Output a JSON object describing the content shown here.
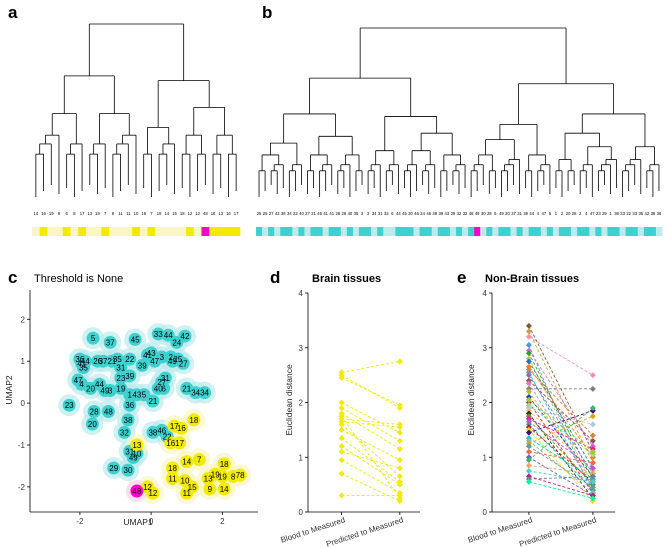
{
  "panels": {
    "a": {
      "label": "a"
    },
    "b": {
      "label": "b"
    },
    "c": {
      "label": "c",
      "title": "Threshold is None"
    },
    "d": {
      "label": "d",
      "title": "Brain tissues"
    },
    "e": {
      "label": "e",
      "title": "Non-Brain tissues"
    }
  },
  "colors": {
    "yellow": "#f2ea00",
    "light_yellow": "#faf6c2",
    "cyan": "#3fd0d0",
    "light_cyan": "#bcebec",
    "magenta": "#ff00c8",
    "dendro_line": "#000000"
  },
  "dendrogram_a": {
    "leaf_labels": [
      "14",
      "16",
      "19",
      "9",
      "6",
      "8",
      "17",
      "13",
      "19",
      "7",
      "8",
      "11",
      "11",
      "10",
      "16",
      "7",
      "18",
      "14",
      "15",
      "18",
      "12",
      "12",
      "48",
      "16",
      "13",
      "16",
      "17"
    ],
    "bar_colors": [
      "light_yellow",
      "yellow",
      "light_yellow",
      "light_yellow",
      "yellow",
      "light_yellow",
      "yellow",
      "light_yellow",
      "light_yellow",
      "yellow",
      "light_yellow",
      "light_yellow",
      "light_yellow",
      "yellow",
      "light_yellow",
      "yellow",
      "light_yellow",
      "light_yellow",
      "light_yellow",
      "light_yellow",
      "yellow",
      "light_yellow",
      "magenta",
      "yellow",
      "yellow",
      "yellow",
      "yellow"
    ]
  },
  "dendrogram_b": {
    "leaf_labels": [
      "25",
      "25",
      "27",
      "42",
      "36",
      "34",
      "22",
      "40",
      "27",
      "21",
      "45",
      "41",
      "41",
      "28",
      "26",
      "40",
      "35",
      "3",
      "3",
      "34",
      "31",
      "33",
      "6",
      "44",
      "45",
      "30",
      "46",
      "24",
      "46",
      "38",
      "39",
      "43",
      "29",
      "32",
      "32",
      "48",
      "49",
      "30",
      "28",
      "5",
      "49",
      "20",
      "37",
      "31",
      "39",
      "44",
      "4",
      "47",
      "5",
      "1",
      "2",
      "20",
      "28",
      "2",
      "4",
      "47",
      "23",
      "29",
      "1",
      "38",
      "23",
      "22",
      "33",
      "35",
      "42",
      "36",
      "36"
    ],
    "bar_colors": [
      "cyan",
      "light_cyan",
      "cyan",
      "light_cyan",
      "cyan",
      "cyan",
      "light_cyan",
      "cyan",
      "light_cyan",
      "cyan",
      "cyan",
      "light_cyan",
      "cyan",
      "cyan",
      "light_cyan",
      "cyan",
      "light_cyan",
      "cyan",
      "cyan",
      "light_cyan",
      "cyan",
      "light_cyan",
      "light_cyan",
      "cyan",
      "cyan",
      "cyan",
      "light_cyan",
      "cyan",
      "cyan",
      "light_cyan",
      "cyan",
      "cyan",
      "light_cyan",
      "cyan",
      "light_cyan",
      "cyan",
      "magenta",
      "light_cyan",
      "cyan",
      "light_cyan",
      "cyan",
      "cyan",
      "light_cyan",
      "cyan",
      "light_cyan",
      "cyan",
      "cyan",
      "light_cyan",
      "cyan",
      "light_cyan",
      "cyan",
      "cyan",
      "light_cyan",
      "cyan",
      "cyan",
      "light_cyan",
      "cyan",
      "light_cyan",
      "cyan",
      "cyan",
      "light_cyan",
      "cyan",
      "cyan",
      "light_cyan",
      "cyan",
      "cyan",
      "light_cyan"
    ]
  },
  "chart_data": [
    {
      "type": "scatter",
      "panel": "c",
      "title": "Threshold is None",
      "xlabel": "UMAP1",
      "ylabel": "UMAP2",
      "xlim": [
        -3.4,
        3.0
      ],
      "ylim": [
        -2.6,
        2.7
      ],
      "xticks": [
        "-2",
        "0",
        "2"
      ],
      "yticks": [
        "-2",
        "-1",
        "0",
        "1",
        "2"
      ],
      "points": [
        {
          "x": -1.63,
          "y": 1.55,
          "label": "5",
          "group": "cyan"
        },
        {
          "x": -1.15,
          "y": 1.45,
          "label": "37",
          "group": "cyan"
        },
        {
          "x": -0.45,
          "y": 1.52,
          "label": "45",
          "group": "cyan"
        },
        {
          "x": 0.2,
          "y": 1.65,
          "label": "33",
          "group": "cyan"
        },
        {
          "x": 0.48,
          "y": 1.62,
          "label": "44",
          "group": "cyan"
        },
        {
          "x": 0.95,
          "y": 1.6,
          "label": "42",
          "group": "cyan"
        },
        {
          "x": 0.72,
          "y": 1.45,
          "label": "24",
          "group": "cyan"
        },
        {
          "x": 0.0,
          "y": 1.2,
          "label": "43",
          "group": "cyan"
        },
        {
          "x": -0.1,
          "y": 1.15,
          "label": "41",
          "group": "cyan"
        },
        {
          "x": 0.1,
          "y": 1.0,
          "label": "47",
          "group": "cyan"
        },
        {
          "x": 0.3,
          "y": 1.1,
          "label": "3",
          "group": "cyan"
        },
        {
          "x": 0.55,
          "y": 1.1,
          "label": "2",
          "group": "cyan"
        },
        {
          "x": 0.6,
          "y": 1.0,
          "label": "49",
          "group": "cyan"
        },
        {
          "x": 0.75,
          "y": 1.05,
          "label": "25",
          "group": "cyan"
        },
        {
          "x": 0.9,
          "y": 0.95,
          "label": "27",
          "group": "cyan"
        },
        {
          "x": -2.0,
          "y": 1.05,
          "label": "36",
          "group": "cyan"
        },
        {
          "x": -1.9,
          "y": 0.85,
          "label": "35",
          "group": "cyan"
        },
        {
          "x": -1.95,
          "y": 0.95,
          "label": "41",
          "group": "cyan"
        },
        {
          "x": -1.85,
          "y": 1.0,
          "label": "44",
          "group": "cyan"
        },
        {
          "x": -1.5,
          "y": 1.0,
          "label": "26",
          "group": "cyan"
        },
        {
          "x": -1.35,
          "y": 1.0,
          "label": "37",
          "group": "cyan"
        },
        {
          "x": -1.1,
          "y": 1.0,
          "label": "21",
          "group": "cyan"
        },
        {
          "x": -0.95,
          "y": 1.05,
          "label": "35",
          "group": "cyan"
        },
        {
          "x": -0.6,
          "y": 1.05,
          "label": "22",
          "group": "cyan"
        },
        {
          "x": -0.25,
          "y": 0.9,
          "label": "39",
          "group": "cyan"
        },
        {
          "x": -0.85,
          "y": 0.85,
          "label": "31",
          "group": "cyan"
        },
        {
          "x": -2.05,
          "y": 0.55,
          "label": "47",
          "group": "cyan"
        },
        {
          "x": -1.95,
          "y": 0.45,
          "label": "4",
          "group": "cyan"
        },
        {
          "x": -1.7,
          "y": 0.35,
          "label": "20",
          "group": "cyan"
        },
        {
          "x": -1.45,
          "y": 0.45,
          "label": "44",
          "group": "cyan"
        },
        {
          "x": -1.3,
          "y": 0.3,
          "label": "49",
          "group": "cyan"
        },
        {
          "x": -1.15,
          "y": 0.3,
          "label": "3",
          "group": "cyan"
        },
        {
          "x": -0.85,
          "y": 0.6,
          "label": "23",
          "group": "cyan"
        },
        {
          "x": -0.6,
          "y": 0.65,
          "label": "39",
          "group": "cyan"
        },
        {
          "x": -0.85,
          "y": 0.35,
          "label": "19",
          "group": "cyan"
        },
        {
          "x": -0.6,
          "y": 0.2,
          "label": "1",
          "group": "cyan"
        },
        {
          "x": -0.4,
          "y": 0.2,
          "label": "43",
          "group": "cyan"
        },
        {
          "x": -0.2,
          "y": 0.2,
          "label": "5",
          "group": "cyan"
        },
        {
          "x": 0.3,
          "y": 0.5,
          "label": "27",
          "group": "cyan"
        },
        {
          "x": 0.4,
          "y": 0.6,
          "label": "31",
          "group": "cyan"
        },
        {
          "x": 0.2,
          "y": 0.35,
          "label": "40",
          "group": "cyan"
        },
        {
          "x": 0.35,
          "y": 0.35,
          "label": "6",
          "group": "cyan"
        },
        {
          "x": 0.05,
          "y": 0.05,
          "label": "21",
          "group": "cyan"
        },
        {
          "x": 1.0,
          "y": 0.35,
          "label": "21",
          "group": "cyan"
        },
        {
          "x": 1.25,
          "y": 0.25,
          "label": "34",
          "group": "cyan"
        },
        {
          "x": 1.5,
          "y": 0.25,
          "label": "34",
          "group": "cyan"
        },
        {
          "x": -2.3,
          "y": -0.05,
          "label": "23",
          "group": "cyan"
        },
        {
          "x": -1.6,
          "y": -0.2,
          "label": "28",
          "group": "cyan"
        },
        {
          "x": -1.2,
          "y": -0.2,
          "label": "48",
          "group": "cyan"
        },
        {
          "x": -0.6,
          "y": -0.05,
          "label": "36",
          "group": "cyan"
        },
        {
          "x": -1.65,
          "y": -0.5,
          "label": "20",
          "group": "cyan"
        },
        {
          "x": -0.65,
          "y": -0.4,
          "label": "38",
          "group": "cyan"
        },
        {
          "x": -0.75,
          "y": -0.7,
          "label": "32",
          "group": "cyan"
        },
        {
          "x": 0.05,
          "y": -0.7,
          "label": "38",
          "group": "cyan"
        },
        {
          "x": 0.3,
          "y": -0.65,
          "label": "46",
          "group": "cyan"
        },
        {
          "x": 0.45,
          "y": -0.8,
          "label": "22",
          "group": "cyan"
        },
        {
          "x": -0.6,
          "y": -1.15,
          "label": "31",
          "group": "cyan"
        },
        {
          "x": -0.4,
          "y": -1.2,
          "label": "10",
          "group": "cyan"
        },
        {
          "x": -0.5,
          "y": -1.3,
          "label": "49",
          "group": "cyan"
        },
        {
          "x": -1.05,
          "y": -1.55,
          "label": "29",
          "group": "cyan"
        },
        {
          "x": -0.65,
          "y": -1.6,
          "label": "30",
          "group": "cyan"
        },
        {
          "x": 1.2,
          "y": -0.4,
          "label": "18",
          "group": "yellow"
        },
        {
          "x": 0.55,
          "y": -0.95,
          "label": "16",
          "group": "yellow"
        },
        {
          "x": 0.8,
          "y": -0.95,
          "label": "17",
          "group": "yellow"
        },
        {
          "x": 0.85,
          "y": -0.6,
          "label": "16",
          "group": "yellow"
        },
        {
          "x": -0.4,
          "y": -1.0,
          "label": "13",
          "group": "yellow"
        },
        {
          "x": 0.65,
          "y": -0.55,
          "label": "17",
          "group": "yellow"
        },
        {
          "x": 1.0,
          "y": -1.4,
          "label": "14",
          "group": "yellow"
        },
        {
          "x": 1.35,
          "y": -1.35,
          "label": "7",
          "group": "yellow"
        },
        {
          "x": 0.6,
          "y": -1.55,
          "label": "18",
          "group": "yellow"
        },
        {
          "x": 0.6,
          "y": -1.8,
          "label": "11",
          "group": "yellow"
        },
        {
          "x": 0.95,
          "y": -1.85,
          "label": "10",
          "group": "yellow"
        },
        {
          "x": 1.15,
          "y": -2.0,
          "label": "15",
          "group": "yellow"
        },
        {
          "x": 1.0,
          "y": -2.15,
          "label": "11",
          "group": "yellow"
        },
        {
          "x": 1.6,
          "y": -1.8,
          "label": "13",
          "group": "yellow"
        },
        {
          "x": 1.8,
          "y": -1.7,
          "label": "19",
          "group": "yellow"
        },
        {
          "x": 1.65,
          "y": -2.05,
          "label": "9",
          "group": "yellow"
        },
        {
          "x": 2.05,
          "y": -1.45,
          "label": "18",
          "group": "yellow"
        },
        {
          "x": 2.0,
          "y": -1.75,
          "label": "19",
          "group": "yellow"
        },
        {
          "x": 2.3,
          "y": -1.75,
          "label": "8",
          "group": "yellow"
        },
        {
          "x": 2.5,
          "y": -1.72,
          "label": "78",
          "group": "yellow"
        },
        {
          "x": 2.05,
          "y": -2.05,
          "label": "14",
          "group": "yellow"
        },
        {
          "x": -0.1,
          "y": -2.0,
          "label": "12",
          "group": "yellow"
        },
        {
          "x": 0.05,
          "y": -2.15,
          "label": "12",
          "group": "yellow"
        },
        {
          "x": -0.4,
          "y": -2.1,
          "label": "48",
          "group": "magenta"
        }
      ]
    },
    {
      "type": "line",
      "panel": "d",
      "title": "Brain tissues",
      "xlabel": "",
      "ylabel": "Euclidean distance",
      "ylim": [
        0,
        4
      ],
      "yticks": [
        "0",
        "1",
        "2",
        "3",
        "4"
      ],
      "categories": [
        "Blood to Measured",
        "Predicted to Measured"
      ],
      "color": "#f2ea00",
      "pairs": [
        [
          2.55,
          2.75
        ],
        [
          2.5,
          1.9
        ],
        [
          2.45,
          1.95
        ],
        [
          2.0,
          1.45
        ],
        [
          1.9,
          1.3
        ],
        [
          1.8,
          1.15
        ],
        [
          1.7,
          1.6
        ],
        [
          1.65,
          1.55
        ],
        [
          1.5,
          0.95
        ],
        [
          1.35,
          0.55
        ],
        [
          1.2,
          0.5
        ],
        [
          1.1,
          0.8
        ],
        [
          0.95,
          0.35
        ],
        [
          0.7,
          0.2
        ],
        [
          0.3,
          0.3
        ],
        [
          1.6,
          0.65
        ],
        [
          1.75,
          0.25
        ]
      ]
    },
    {
      "type": "line",
      "panel": "e",
      "title": "Non-Brain tissues",
      "xlabel": "",
      "ylabel": "Euclidean distance",
      "ylim": [
        0,
        4
      ],
      "yticks": [
        "0",
        "1",
        "2",
        "3",
        "4"
      ],
      "categories": [
        "Blood to Measured",
        "Predicted to Measured"
      ],
      "pairs": [
        [
          3.4,
          1.1
        ],
        [
          3.3,
          0.9
        ],
        [
          3.2,
          2.5
        ],
        [
          3.05,
          0.3
        ],
        [
          2.95,
          1.2
        ],
        [
          2.9,
          0.6
        ],
        [
          2.8,
          0.5
        ],
        [
          2.75,
          0.8
        ],
        [
          2.65,
          1.0
        ],
        [
          2.55,
          0.4
        ],
        [
          2.5,
          0.7
        ],
        [
          2.4,
          1.3
        ],
        [
          2.35,
          0.45
        ],
        [
          2.25,
          2.25
        ],
        [
          2.2,
          0.55
        ],
        [
          2.1,
          0.65
        ],
        [
          2.0,
          0.35
        ],
        [
          1.95,
          1.05
        ],
        [
          1.9,
          1.6
        ],
        [
          1.85,
          0.75
        ],
        [
          1.8,
          0.25
        ],
        [
          1.75,
          0.5
        ],
        [
          1.7,
          1.15
        ],
        [
          1.6,
          0.4
        ],
        [
          1.55,
          0.55
        ],
        [
          1.5,
          0.2
        ],
        [
          1.45,
          1.85
        ],
        [
          1.35,
          0.6
        ],
        [
          1.3,
          0.35
        ],
        [
          1.25,
          1.75
        ],
        [
          1.2,
          0.45
        ],
        [
          1.1,
          0.9
        ],
        [
          1.0,
          0.3
        ],
        [
          0.95,
          1.9
        ],
        [
          0.85,
          0.7
        ],
        [
          0.75,
          0.55
        ],
        [
          0.65,
          0.3
        ],
        [
          0.6,
          0.65
        ],
        [
          0.55,
          0.25
        ],
        [
          2.6,
          1.4
        ],
        [
          2.05,
          1.1
        ],
        [
          1.65,
          0.8
        ]
      ],
      "colors": [
        "#7a5c3c",
        "#c9a04a",
        "#ff8fb0",
        "#4c9bd6",
        "#d96ad9",
        "#2ca02c",
        "#c8c26a",
        "#1f77b4",
        "#ff7f0e",
        "#17becf",
        "#9467bd",
        "#8c564b",
        "#e377c2",
        "#7f7f7f",
        "#bcbd22",
        "#1a3fbf",
        "#d62728",
        "#98df8a",
        "#aec7e8",
        "#ffbb78",
        "#2b2b2b",
        "#6b8e23",
        "#ff1493",
        "#20b2aa",
        "#b22222",
        "#ffd700",
        "#4b0082",
        "#00ced1",
        "#8fbc8f",
        "#daa520",
        "#5f9ea0",
        "#ff6347",
        "#6a5acd",
        "#3cb371",
        "#f4a460",
        "#48d1cc",
        "#c71585",
        "#708090",
        "#00fa9a",
        "#cd853f",
        "#9acd32",
        "#ba55d3"
      ]
    }
  ]
}
